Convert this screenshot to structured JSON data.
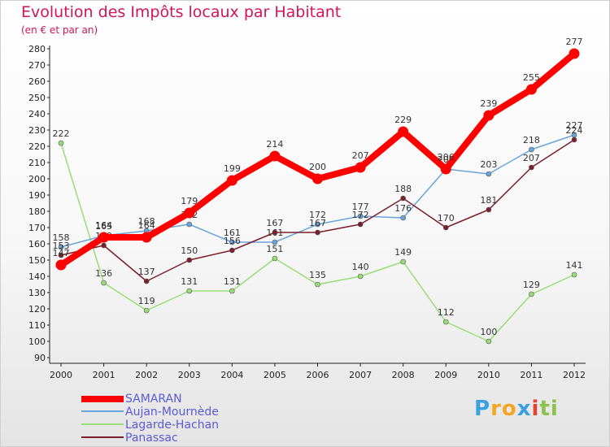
{
  "chart_data": {
    "type": "line",
    "title": "Evolution des Impôts locaux par Habitant",
    "subtitle": "(en € et par an)",
    "x": [
      "2000",
      "2001",
      "2002",
      "2003",
      "2004",
      "2005",
      "2006",
      "2007",
      "2008",
      "2009",
      "2010",
      "2011",
      "2012"
    ],
    "yticks": [
      "90",
      "100",
      "110",
      "120",
      "130",
      "140",
      "150",
      "160",
      "170",
      "180",
      "190",
      "200",
      "210",
      "220",
      "230",
      "240",
      "250",
      "260",
      "270",
      "280"
    ],
    "ylim": [
      90,
      280
    ],
    "series": [
      {
        "name": "SAMARAN",
        "color": "#ff0000",
        "values": [
          147,
          164,
          164,
          179,
          199,
          214,
          200,
          207,
          229,
          206,
          239,
          255,
          277
        ],
        "labels": [
          "147",
          "164",
          "164",
          "179",
          "199",
          "214",
          "200",
          "207",
          "229",
          "206",
          "239",
          "255",
          "277"
        ]
      },
      {
        "name": "Aujan-Mournède",
        "color": "#6aa5d8",
        "values": [
          158,
          165,
          168,
          172,
          161,
          161,
          172,
          177,
          176,
          206,
          203,
          218,
          227
        ],
        "labels": [
          "158",
          "165",
          "168",
          "172",
          "161",
          "161",
          "172",
          "177",
          "176",
          "206",
          "203",
          "218",
          "227"
        ]
      },
      {
        "name": "Lagarde-Hachan",
        "color": "#99dd77",
        "values": [
          222,
          136,
          119,
          131,
          131,
          151,
          135,
          140,
          149,
          112,
          100,
          129,
          141
        ],
        "labels": [
          "222",
          "136",
          "119",
          "131",
          "131",
          "151",
          "135",
          "140",
          "149",
          "112",
          "100",
          "129",
          "141"
        ]
      },
      {
        "name": "Panassac",
        "color": "#7b1f2a",
        "values": [
          153,
          159,
          137,
          150,
          156,
          167,
          167,
          172,
          188,
          170,
          181,
          207,
          224
        ],
        "labels": [
          "153",
          "159",
          "137",
          "150",
          "156",
          "167",
          "167",
          "172",
          "188",
          "170",
          "181",
          "207",
          "224"
        ]
      }
    ],
    "legend_position": "bottom-left",
    "grid": false
  },
  "logo": {
    "letters": [
      "P",
      "r",
      "o",
      "x",
      "i",
      "t",
      "i"
    ],
    "colors": [
      "#3aa0e0",
      "#f5a623",
      "#f5a623",
      "#3aa0e0",
      "#e2452f",
      "#8bc34a",
      "#8bc34a"
    ]
  }
}
